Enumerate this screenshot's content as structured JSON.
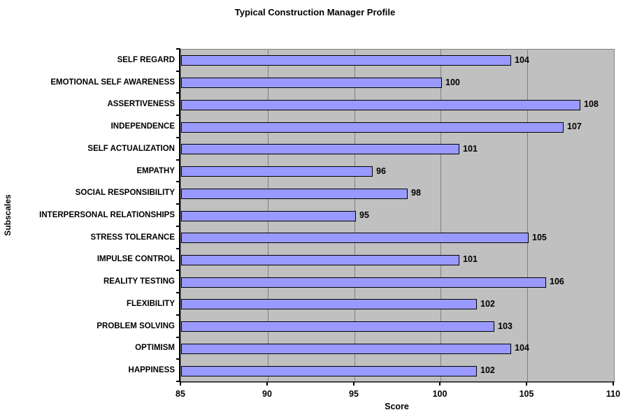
{
  "chart_data": {
    "type": "bar",
    "orientation": "horizontal",
    "title": "Typical Construction Manager Profile",
    "xlabel": "Score",
    "ylabel": "Subscales",
    "xlim": [
      85,
      110
    ],
    "xticks": [
      85,
      90,
      95,
      100,
      105,
      110
    ],
    "gridlines": [
      90,
      95,
      100,
      105
    ],
    "categories": [
      "SELF REGARD",
      "EMOTIONAL SELF AWARENESS",
      "ASSERTIVENESS",
      "INDEPENDENCE",
      "SELF ACTUALIZATION",
      "EMPATHY",
      "SOCIAL RESPONSIBILITY",
      "INTERPERSONAL RELATIONSHIPS",
      "STRESS TOLERANCE",
      "IMPULSE CONTROL",
      "REALITY TESTING",
      "FLEXIBILITY",
      "PROBLEM SOLVING",
      "OPTIMISM",
      "HAPPINESS"
    ],
    "values": [
      104,
      100,
      108,
      107,
      101,
      96,
      98,
      95,
      105,
      101,
      106,
      102,
      103,
      104,
      102
    ],
    "data_labels_shown": true,
    "legend": "none",
    "colors": {
      "bar_fill": "#9999FF",
      "bar_border": "#000000",
      "plot_background": "#C0C0C0",
      "gridline": "#808080",
      "text": "#000000",
      "page_background": "#FFFFFF"
    }
  }
}
